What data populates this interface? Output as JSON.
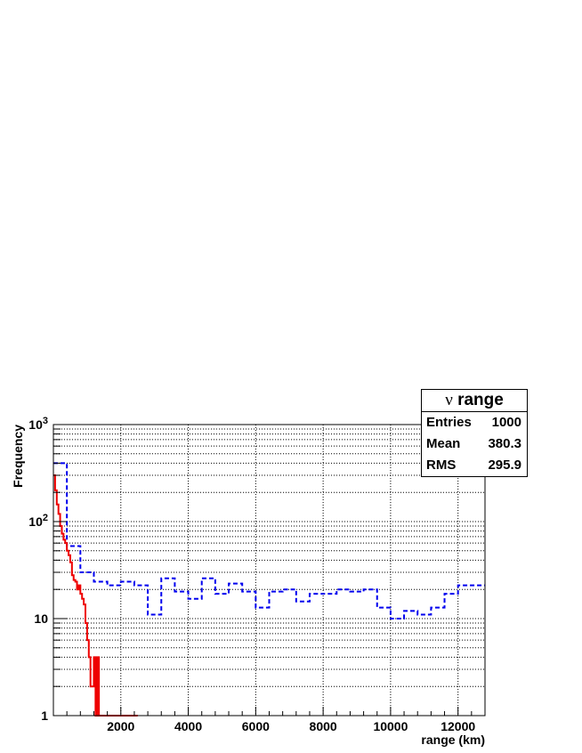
{
  "chart_data": {
    "type": "histogram",
    "xlabel": "range (km)",
    "ylabel": "Frequency",
    "xlim": [
      0,
      12800
    ],
    "ylim": [
      1,
      1000
    ],
    "yscale": "log",
    "grid": true,
    "x_ticks": [
      2000,
      4000,
      6000,
      8000,
      10000,
      12000
    ],
    "x_tick_labels": [
      "2000",
      "4000",
      "6000",
      "8000",
      "10000",
      "12000"
    ],
    "y_ticks": [
      1,
      10,
      100,
      1000
    ],
    "stats": {
      "title_symbol": "ν",
      "title_text": "range",
      "rows": [
        {
          "label": "Entries",
          "value": "1000"
        },
        {
          "label": "Mean",
          "value": "380.3"
        },
        {
          "label": "RMS",
          "value": "295.9"
        }
      ]
    },
    "series": [
      {
        "style": "dashed",
        "color": "#0000ee",
        "edges": [
          0,
          400,
          800,
          1200,
          1600,
          2000,
          2400,
          2800,
          3200,
          3600,
          4000,
          4400,
          4800,
          5200,
          5600,
          6000,
          6400,
          6800,
          7200,
          7600,
          8000,
          8400,
          8800,
          9200,
          9600,
          10000,
          10400,
          10800,
          11200,
          11600,
          12000,
          12400,
          12800
        ],
        "values": [
          400,
          56,
          30,
          24,
          22,
          24,
          22,
          11,
          26,
          19,
          16,
          26,
          18,
          23,
          19,
          13,
          19,
          20,
          15,
          18,
          18,
          20,
          19,
          20,
          13,
          10,
          12,
          11,
          13,
          18,
          22,
          22
        ]
      },
      {
        "style": "solid",
        "color": "#ee0000",
        "edges": [
          0,
          50,
          100,
          150,
          200,
          250,
          300,
          350,
          400,
          450,
          500,
          550,
          600,
          650,
          700,
          750,
          800,
          850,
          900,
          950,
          1000,
          1050,
          1100,
          1150,
          1200,
          1250,
          1300,
          1350,
          1400,
          1450,
          1500,
          1550,
          1600,
          1650
        ],
        "values": [
          300,
          210,
          150,
          120,
          90,
          75,
          65,
          60,
          50,
          45,
          38,
          28,
          25,
          24,
          20,
          22,
          18,
          16,
          14,
          9,
          6,
          4,
          2,
          2,
          4,
          1,
          4,
          1,
          1,
          1,
          1,
          1,
          1
        ],
        "baseline_tail": [
          1650,
          2500
        ]
      }
    ]
  }
}
